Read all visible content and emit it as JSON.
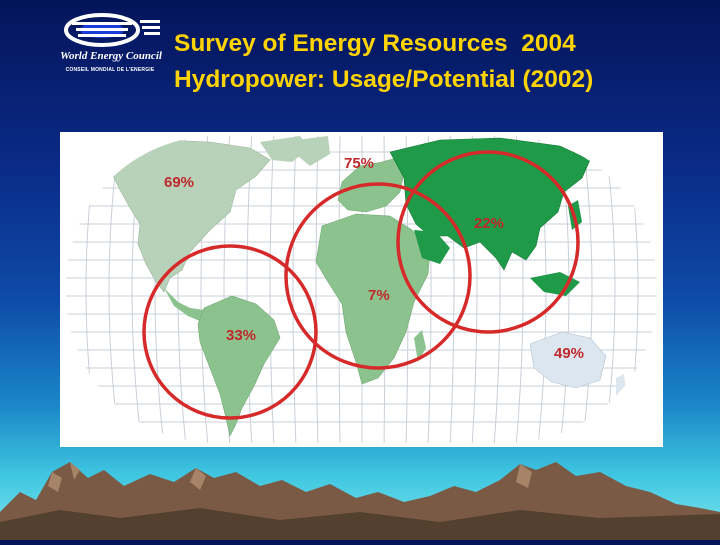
{
  "slide": {
    "title_line1": "Survey of Energy Resources  2004",
    "title_line2": "Hydropower: Usage/Potential (2002)"
  },
  "logo": {
    "name": "World Energy Council",
    "subtitle": "CONSEIL MONDIAL DE L'ENERGIE"
  },
  "colors": {
    "title": "#ffd400",
    "circle": "#d62a2a",
    "label": "#c0282b",
    "asia": "#1f9a48",
    "africa_south_america": "#8cc28e",
    "north_america": "#b8d2ba",
    "oceania": "#dce6ef"
  },
  "map": {
    "regions": [
      {
        "id": "north-america",
        "label": "69%"
      },
      {
        "id": "europe",
        "label": "75%"
      },
      {
        "id": "asia",
        "label": "22%"
      },
      {
        "id": "africa",
        "label": "7%"
      },
      {
        "id": "south-america",
        "label": "33%"
      },
      {
        "id": "oceania",
        "label": "49%"
      }
    ]
  }
}
